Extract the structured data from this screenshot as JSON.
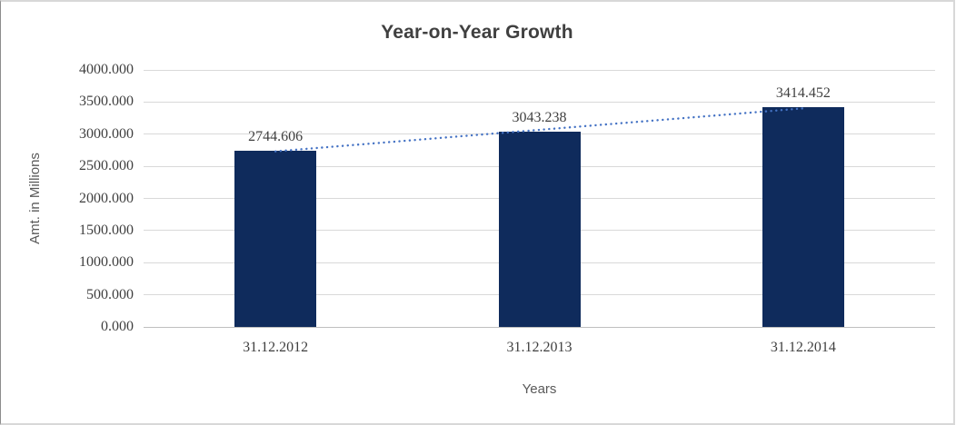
{
  "chart_data": {
    "type": "bar",
    "title": "Year-on-Year Growth",
    "xlabel": "Years",
    "ylabel": "Amt. in Millions",
    "categories": [
      "31.12.2012",
      "31.12.2013",
      "31.12.2014"
    ],
    "values": [
      2744.606,
      3043.238,
      3414.452
    ],
    "data_labels": [
      "2744.606",
      "3043.238",
      "3414.452"
    ],
    "ylim": [
      0,
      4000
    ],
    "ytick_step": 500,
    "ytick_labels": [
      "0.000",
      "500.000",
      "1000.000",
      "1500.000",
      "2000.000",
      "2500.000",
      "3000.000",
      "3500.000",
      "4000.000"
    ],
    "grid": "horizontal-only",
    "legend": "none",
    "trendline": {
      "type": "linear",
      "style": "dotted",
      "color": "#4472c4"
    },
    "bar_color": "#0f2b5c",
    "colors": {
      "title": "#404040",
      "tick_label": "#3f3f3f",
      "axis_title": "#595959",
      "gridline": "#d9d9d9",
      "axis_line": "#bfbfbf",
      "frame_border": "#d8d8d8"
    }
  }
}
